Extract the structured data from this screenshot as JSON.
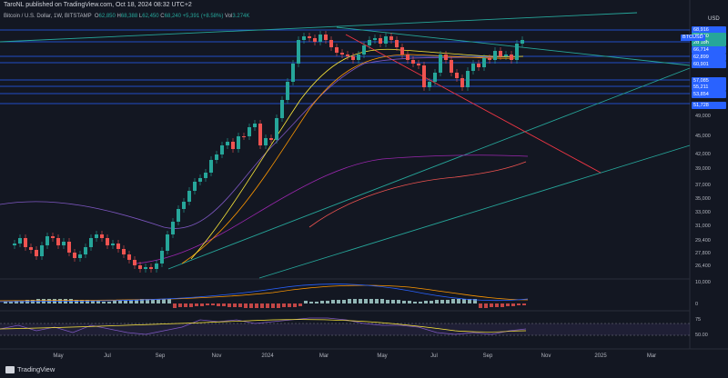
{
  "header": {
    "publisher": "TaroNL published on TradingView.com, Oct 18, 2024 08:32 UTC+2"
  },
  "symbol": {
    "name": "Bitcoin / U.S. Dollar, 1W, BITSTAMP",
    "open_label": "O",
    "open": "62,850",
    "high_label": "H",
    "high": "68,388",
    "low_label": "L",
    "low": "62,450",
    "close_label": "C",
    "close": "68,240",
    "change": "+5,391 (+8.58%)",
    "vol_label": "Vol",
    "vol": "3.274K"
  },
  "axis": {
    "currency": "USD",
    "ticks": [
      "49,000",
      "45,000",
      "42,000",
      "39,000",
      "37,000",
      "35,000",
      "33,000",
      "31,000",
      "29,400",
      "27,800",
      "26,400",
      "10,000",
      "0",
      "75",
      "50.00"
    ]
  },
  "price_tags": [
    {
      "label": "68,916",
      "color": "#2962ff"
    },
    {
      "label": "68,240",
      "color": "#26a69a"
    },
    {
      "label": "2d 18h",
      "color": "#26a69a"
    },
    {
      "label": "66,714",
      "color": "#2962ff"
    },
    {
      "label": "62,899",
      "color": "#2962ff"
    },
    {
      "label": "60,901",
      "color": "#2962ff"
    },
    {
      "label": "57,085",
      "color": "#2962ff"
    },
    {
      "label": "55,211",
      "color": "#2962ff"
    },
    {
      "label": "53,854",
      "color": "#2962ff"
    },
    {
      "label": "51,728",
      "color": "#2962ff"
    }
  ],
  "ticker_tag": "BTCUSD",
  "months": [
    "May",
    "Jul",
    "Sep",
    "Nov",
    "2024",
    "Mar",
    "May",
    "Jul",
    "Sep",
    "Nov",
    "2025",
    "Mar"
  ],
  "footer": {
    "brand": "TradingView"
  },
  "colors": {
    "background": "#131722",
    "up": "#26a69a",
    "down": "#ef5350",
    "support_line": "#2962ff",
    "trend_line": "#26a69a",
    "resistance_diag": "#f23645"
  }
}
